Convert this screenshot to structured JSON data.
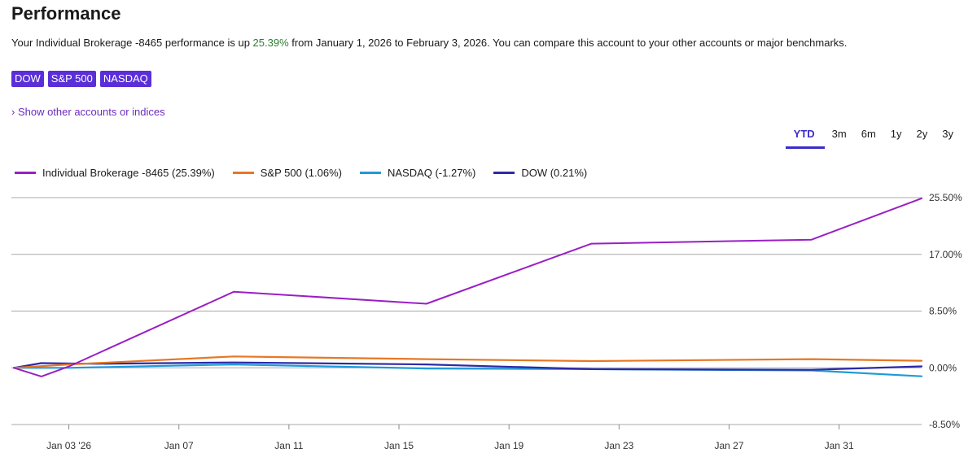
{
  "page": {
    "title": "Performance",
    "summary_prefix": "Your Individual Brokerage -8465 performance is up ",
    "summary_value": "25.39%",
    "summary_suffix": " from January 1, 2026 to February 3, 2026. You can compare this account to your other accounts or major benchmarks.",
    "chips": [
      "DOW",
      "S&P 500",
      "NASDAQ"
    ],
    "show_link": "› Show other accounts or indices",
    "ranges": [
      "YTD",
      "3m",
      "6m",
      "1y",
      "2y",
      "3y"
    ],
    "active_range": "YTD"
  },
  "chart_data": {
    "type": "line",
    "x": [
      "2026-01-01",
      "2026-01-02",
      "2026-01-03",
      "2026-01-04",
      "2026-01-09",
      "2026-01-16",
      "2026-01-22",
      "2026-01-30",
      "2026-02-03"
    ],
    "xticks": [
      {
        "date": "2026-01-03",
        "label": "Jan 03 '26"
      },
      {
        "date": "2026-01-07",
        "label": "Jan 07"
      },
      {
        "date": "2026-01-11",
        "label": "Jan 11"
      },
      {
        "date": "2026-01-15",
        "label": "Jan 15"
      },
      {
        "date": "2026-01-19",
        "label": "Jan 19"
      },
      {
        "date": "2026-01-23",
        "label": "Jan 23"
      },
      {
        "date": "2026-01-27",
        "label": "Jan 27"
      },
      {
        "date": "2026-01-31",
        "label": "Jan 31"
      }
    ],
    "yticks": [
      {
        "value": 25.5,
        "label": "25.50%"
      },
      {
        "value": 17.0,
        "label": "17.00%"
      },
      {
        "value": 8.5,
        "label": "8.50%"
      },
      {
        "value": 0.0,
        "label": "0.00%"
      },
      {
        "value": -8.5,
        "label": "-8.50%"
      }
    ],
    "ylim": [
      -8.5,
      25.5
    ],
    "grid": true,
    "legend_position": "top-left",
    "series": [
      {
        "name": "Individual Brokerage -8465 (25.39%)",
        "color": "#9a1fc4",
        "points": [
          [
            "2026-01-01",
            0.0
          ],
          [
            "2026-01-02",
            -1.3
          ],
          [
            "2026-01-03",
            0.2
          ],
          [
            "2026-01-09",
            11.4
          ],
          [
            "2026-01-16",
            9.6
          ],
          [
            "2026-01-22",
            18.6
          ],
          [
            "2026-01-30",
            19.2
          ],
          [
            "2026-02-03",
            25.39
          ]
        ]
      },
      {
        "name": "S&P 500 (1.06%)",
        "color": "#e87722",
        "points": [
          [
            "2026-01-01",
            0.0
          ],
          [
            "2026-01-03",
            0.5
          ],
          [
            "2026-01-09",
            1.7
          ],
          [
            "2026-01-16",
            1.3
          ],
          [
            "2026-01-22",
            1.0
          ],
          [
            "2026-01-30",
            1.3
          ],
          [
            "2026-02-03",
            1.06
          ]
        ]
      },
      {
        "name": "NASDAQ (-1.27%)",
        "color": "#1f9ad8",
        "points": [
          [
            "2026-01-01",
            0.0
          ],
          [
            "2026-01-03",
            0.0
          ],
          [
            "2026-01-09",
            0.5
          ],
          [
            "2026-01-16",
            -0.1
          ],
          [
            "2026-01-22",
            -0.2
          ],
          [
            "2026-01-30",
            -0.4
          ],
          [
            "2026-02-03",
            -1.27
          ]
        ]
      },
      {
        "name": "DOW (0.21%)",
        "color": "#2b2aa8",
        "points": [
          [
            "2026-01-01",
            0.0
          ],
          [
            "2026-01-02",
            0.7
          ],
          [
            "2026-01-04",
            0.6
          ],
          [
            "2026-01-09",
            0.8
          ],
          [
            "2026-01-16",
            0.5
          ],
          [
            "2026-01-22",
            -0.2
          ],
          [
            "2026-01-30",
            -0.3
          ],
          [
            "2026-02-03",
            0.21
          ]
        ]
      }
    ]
  }
}
